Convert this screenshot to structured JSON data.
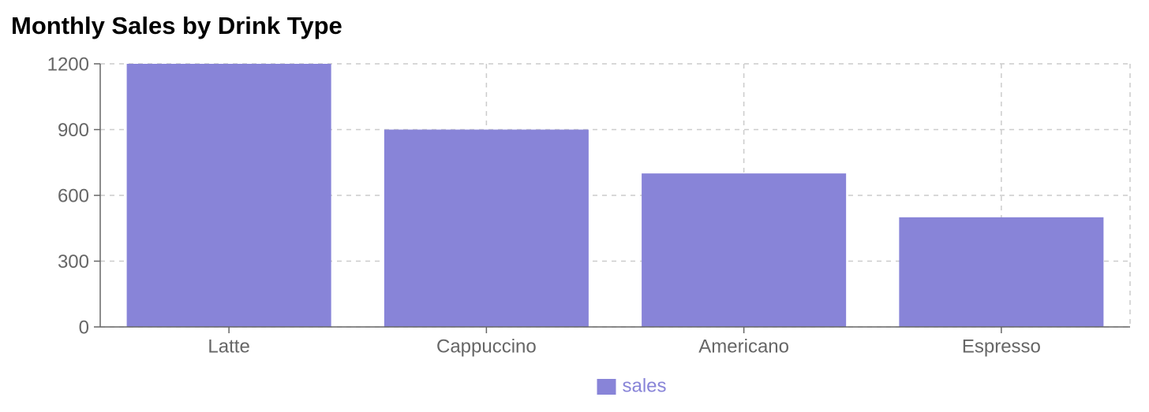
{
  "chart_data": {
    "type": "bar",
    "title": "Monthly Sales by Drink Type",
    "categories": [
      "Latte",
      "Cappuccino",
      "Americano",
      "Espresso"
    ],
    "series": [
      {
        "name": "sales",
        "color": "#8884d8",
        "values": [
          1200,
          900,
          700,
          500
        ]
      }
    ],
    "ylim": [
      0,
      1200
    ],
    "yticks": [
      0,
      300,
      600,
      900,
      1200
    ],
    "grid": true
  }
}
